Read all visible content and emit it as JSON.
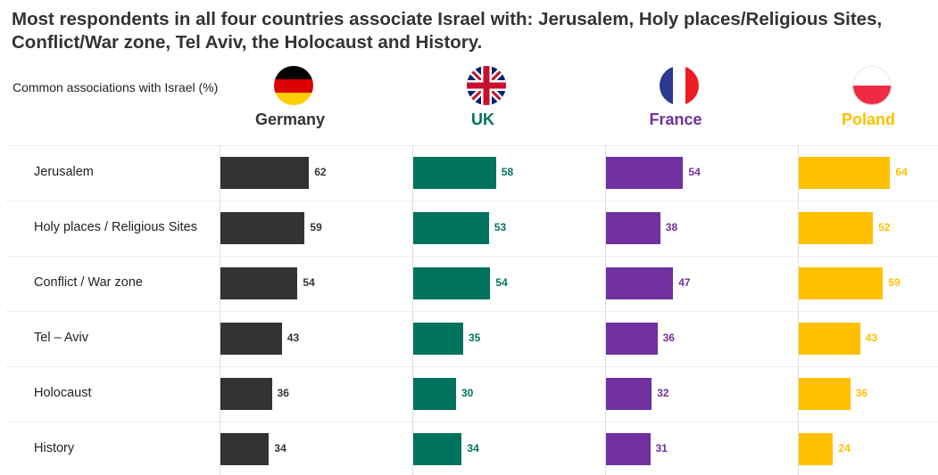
{
  "title": "Most respondents in all four countries associate Israel with: Jerusalem, Holy places/Religious Sites, Conflict/War zone, Tel Aviv, the Holocaust and History.",
  "chart_data": {
    "type": "bar",
    "orientation": "horizontal",
    "subtitle": "Common associations with Israel (%)",
    "categories": [
      "Jerusalem",
      "Holy places / Religious Sites",
      "Conflict / War zone",
      "Tel – Aviv",
      "Holocaust",
      "History"
    ],
    "series": [
      {
        "name": "Germany",
        "color": "#333333",
        "flag": "germany-flag",
        "values": [
          62,
          59,
          54,
          43,
          36,
          34
        ]
      },
      {
        "name": "UK",
        "color": "#00735E",
        "flag": "uk-flag",
        "values": [
          58,
          53,
          54,
          35,
          30,
          34
        ]
      },
      {
        "name": "France",
        "color": "#7030A0",
        "flag": "france-flag",
        "values": [
          54,
          38,
          47,
          36,
          32,
          31
        ]
      },
      {
        "name": "Poland",
        "color": "#FFC000",
        "flag": "poland-flag",
        "values": [
          64,
          52,
          59,
          43,
          36,
          24
        ]
      }
    ],
    "grid": false,
    "legend": "none"
  }
}
